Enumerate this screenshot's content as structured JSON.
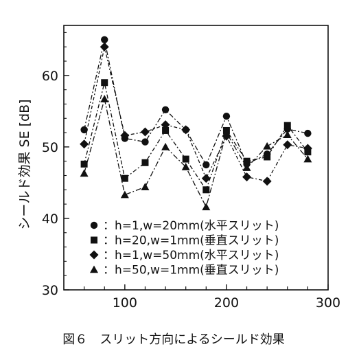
{
  "chart_data": {
    "type": "line",
    "xlabel": "",
    "ylabel": "シールド効果 SE [dB]",
    "xlim": [
      40,
      300
    ],
    "ylim": [
      30,
      67
    ],
    "x_ticks": [
      "100",
      "200",
      "300"
    ],
    "y_ticks": [
      "30",
      "40",
      "50",
      "60"
    ],
    "x": [
      60,
      80,
      100,
      120,
      140,
      160,
      180,
      200,
      220,
      240,
      260,
      280
    ],
    "series": [
      {
        "name": "h=1,w=20mm(水平スリット)",
        "marker": "circle",
        "values": [
          52.4,
          65.0,
          51.2,
          50.7,
          55.2,
          52.4,
          47.5,
          54.3,
          47.6,
          49.0,
          52.5,
          51.9
        ]
      },
      {
        "name": "h=20,w=1mm(垂直スリット)",
        "marker": "square",
        "values": [
          47.6,
          59.0,
          45.6,
          47.8,
          52.3,
          48.3,
          44.0,
          52.3,
          48.0,
          48.6,
          53.0,
          49.3
        ]
      },
      {
        "name": "h=1,w=50mm(水平スリット)",
        "marker": "diamond",
        "values": [
          50.4,
          64.0,
          51.6,
          52.1,
          53.1,
          52.4,
          45.6,
          51.5,
          45.8,
          45.2,
          50.3,
          49.8
        ]
      },
      {
        "name": "h=50,w=1mm(垂直スリット)",
        "marker": "triangle",
        "values": [
          46.3,
          56.7,
          43.3,
          44.4,
          50.0,
          47.2,
          41.6,
          52.0,
          47.1,
          50.1,
          51.7,
          48.3
        ]
      }
    ],
    "legend_position": "bottom-inside",
    "grid": false,
    "caption": "図６　スリット方向によるシールド効果"
  }
}
